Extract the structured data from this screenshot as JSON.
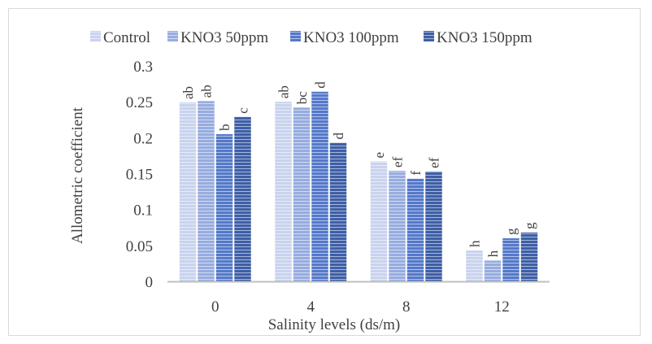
{
  "chart_data": {
    "type": "bar",
    "title": "",
    "xlabel": "Salinity levels (ds/m)",
    "ylabel": "Allometric coefficient",
    "categories": [
      "0",
      "4",
      "8",
      "12"
    ],
    "ylim": [
      0,
      0.3
    ],
    "yticks": [
      0,
      0.05,
      0.1,
      0.15,
      0.2,
      0.25,
      0.3
    ],
    "ytick_labels": [
      "0",
      "0.05",
      "0.1",
      "0.15",
      "0.2",
      "0.25",
      "0.3"
    ],
    "legend_position": "top",
    "grid": false,
    "series": [
      {
        "name": "Control",
        "color": "#c9d3ee",
        "values": [
          0.249,
          0.25,
          0.167,
          0.043
        ],
        "labels": [
          "ab",
          "ab",
          "e",
          "h"
        ]
      },
      {
        "name": "KNO3 50ppm",
        "color": "#97acdf",
        "values": [
          0.251,
          0.242,
          0.154,
          0.029
        ],
        "labels": [
          "ab",
          "bc",
          "ef",
          "h"
        ]
      },
      {
        "name": "KNO3 100ppm",
        "color": "#5579c9",
        "values": [
          0.205,
          0.264,
          0.143,
          0.06
        ],
        "labels": [
          "b",
          "d",
          "f",
          "g"
        ]
      },
      {
        "name": "KNO3 150ppm",
        "color": "#3e5fa6",
        "values": [
          0.229,
          0.193,
          0.153,
          0.068
        ],
        "labels": [
          "c",
          "d",
          "ef",
          "g"
        ]
      }
    ]
  }
}
